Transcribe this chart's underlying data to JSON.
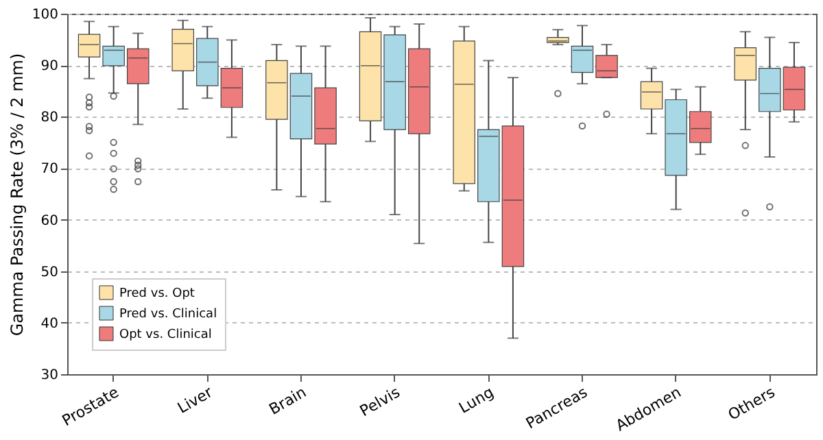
{
  "chart_data": {
    "type": "box",
    "ylabel": "Gamma Passing Rate (3% / 2 mm)",
    "categories": [
      "Prostate",
      "Liver",
      "Brain",
      "Pelvis",
      "Lung",
      "Pancreas",
      "Abdomen",
      "Others"
    ],
    "ylim": [
      30,
      100
    ],
    "yticks": [
      30,
      40,
      50,
      60,
      70,
      80,
      90,
      100
    ],
    "grid": "y",
    "legend": "bottom left",
    "series": [
      {
        "name": "Pred vs. Opt",
        "color": "#fde3a9",
        "boxes": [
          {
            "low": 87.4,
            "q1": 91.6,
            "median": 94,
            "q3": 96,
            "high": 98.5,
            "outliers": [
              83.8,
              82.7,
              81.9,
              78.1,
              77.3,
              72.4
            ]
          },
          {
            "low": 81.5,
            "q1": 88.9,
            "median": 94.2,
            "q3": 97,
            "high": 98.7
          },
          {
            "low": 65.8,
            "q1": 79.5,
            "median": 86.6,
            "q3": 90.9,
            "high": 94
          },
          {
            "low": 75.2,
            "q1": 79.2,
            "median": 89.9,
            "q3": 96.5,
            "high": 99.2
          },
          {
            "low": 65.6,
            "q1": 67,
            "median": 86.3,
            "q3": 94.7,
            "high": 97.5
          },
          {
            "low": 94,
            "q1": 94.4,
            "median": 94.7,
            "q3": 95.4,
            "high": 96.9,
            "outliers": [
              84.5
            ]
          },
          {
            "low": 76.7,
            "q1": 81.5,
            "median": 84.8,
            "q3": 86.8,
            "high": 89.4
          },
          {
            "low": 77.5,
            "q1": 87.1,
            "median": 91.9,
            "q3": 93.4,
            "high": 96.5,
            "outliers": [
              74.4,
              61.3
            ]
          }
        ]
      },
      {
        "name": "Pred vs. Clinical",
        "color": "#a8d8e6",
        "boxes": [
          {
            "low": 84.6,
            "q1": 89.9,
            "median": 92.9,
            "q3": 93.7,
            "high": 97.5,
            "outliers": [
              84,
              75,
              72.9,
              69.9,
              67.4,
              65.9
            ]
          },
          {
            "low": 83.6,
            "q1": 86,
            "median": 90.6,
            "q3": 95.2,
            "high": 97.5
          },
          {
            "low": 64.5,
            "q1": 75.7,
            "median": 84,
            "q3": 88.4,
            "high": 93.7
          },
          {
            "low": 61,
            "q1": 77.5,
            "median": 86.8,
            "q3": 95.9,
            "high": 97.5
          },
          {
            "low": 55.6,
            "q1": 63.5,
            "median": 76.2,
            "q3": 77.5,
            "high": 90.9
          },
          {
            "low": 86.4,
            "q1": 88.6,
            "median": 92.9,
            "q3": 93.7,
            "high": 97.7,
            "outliers": [
              78.2
            ]
          },
          {
            "low": 62,
            "q1": 68.6,
            "median": 76.7,
            "q3": 83.3,
            "high": 85.3
          },
          {
            "low": 72.2,
            "q1": 81,
            "median": 84.5,
            "q3": 89.4,
            "high": 95.4,
            "outliers": [
              62.5
            ]
          }
        ]
      },
      {
        "name": "Opt vs. Clinical",
        "color": "#ef7c7c",
        "boxes": [
          {
            "low": 78.5,
            "q1": 86.4,
            "median": 91.4,
            "q3": 93.2,
            "high": 96.2,
            "outliers": [
              71.4,
              70.6,
              69.9,
              67.4
            ]
          },
          {
            "low": 76,
            "q1": 81.8,
            "median": 85.6,
            "q3": 89.4,
            "high": 94.9
          },
          {
            "low": 63.5,
            "q1": 74.7,
            "median": 77.7,
            "q3": 85.6,
            "high": 93.7
          },
          {
            "low": 55.4,
            "q1": 76.7,
            "median": 85.8,
            "q3": 93.2,
            "high": 98
          },
          {
            "low": 37,
            "q1": 50.9,
            "median": 63.8,
            "q3": 78.2,
            "high": 87.6
          },
          {
            "low": 87.6,
            "q1": 87.6,
            "median": 88.9,
            "q3": 91.9,
            "high": 94,
            "outliers": [
              80.5
            ]
          },
          {
            "low": 72.7,
            "q1": 75,
            "median": 77.7,
            "q3": 81,
            "high": 85.8
          },
          {
            "low": 79,
            "q1": 81.3,
            "median": 85.3,
            "q3": 89.6,
            "high": 94.4
          }
        ]
      }
    ]
  }
}
